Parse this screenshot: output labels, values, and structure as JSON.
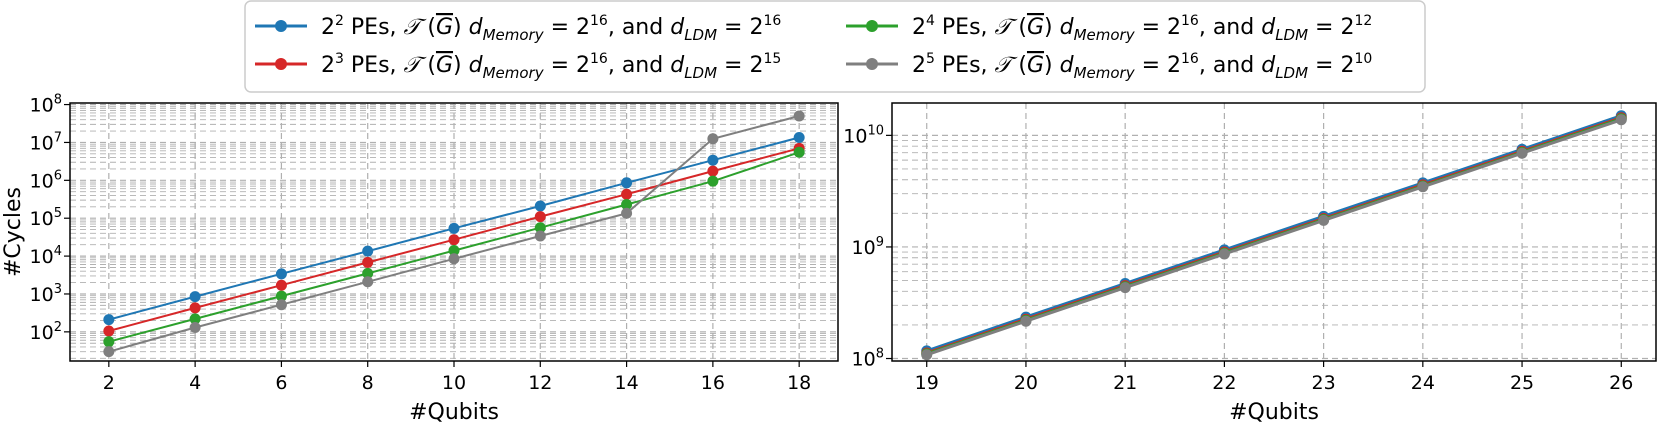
{
  "legend": {
    "entries": [
      {
        "pe": "2",
        "pe_exp": "2",
        "mem_exp": "16",
        "ldm_exp": "16",
        "color": "#1f77b4"
      },
      {
        "pe": "2",
        "pe_exp": "3",
        "mem_exp": "16",
        "ldm_exp": "15",
        "color": "#d62728"
      },
      {
        "pe": "2",
        "pe_exp": "4",
        "mem_exp": "16",
        "ldm_exp": "12",
        "color": "#2ca02c"
      },
      {
        "pe": "2",
        "pe_exp": "5",
        "mem_exp": "16",
        "ldm_exp": "10",
        "color": "#7f7f7f"
      }
    ],
    "text_pes": " PEs, ",
    "text_T": "𝒯",
    "text_G": "G",
    "text_dmem": "d",
    "text_mem_sub": "Memory",
    "text_eq": " = 2",
    "text_and": ", and ",
    "text_dldm": "d",
    "text_ldm_sub": "LDM",
    "text_two": "2"
  },
  "chart_data": [
    {
      "type": "line",
      "xlabel": "#Qubits",
      "ylabel": "#Cycles",
      "yscale": "log",
      "grid": "major and minor, dashed",
      "xlim": [
        1.1,
        18.9
      ],
      "ylim": [
        17,
        110000000
      ],
      "x_ticks": [
        2,
        4,
        6,
        8,
        10,
        12,
        14,
        16,
        18
      ],
      "y_ticks": [
        {
          "base": "10",
          "exp": "2",
          "value": 100
        },
        {
          "base": "10",
          "exp": "3",
          "value": 1000
        },
        {
          "base": "10",
          "exp": "4",
          "value": 10000
        },
        {
          "base": "10",
          "exp": "5",
          "value": 100000
        },
        {
          "base": "10",
          "exp": "6",
          "value": 1000000
        },
        {
          "base": "10",
          "exp": "7",
          "value": 10000000
        },
        {
          "base": "10",
          "exp": "8",
          "value": 100000000
        }
      ],
      "x": [
        2,
        4,
        6,
        8,
        10,
        12,
        14,
        16,
        18
      ],
      "series": [
        {
          "values": [
            210,
            850,
            3400,
            13500,
            54000,
            210000,
            860000,
            3400000,
            13500000
          ],
          "color": "#1f77b4"
        },
        {
          "values": [
            105,
            430,
            1700,
            6800,
            27000,
            110000,
            430000,
            1750000,
            7000000
          ],
          "color": "#d62728"
        },
        {
          "values": [
            55,
            220,
            880,
            3500,
            14000,
            56000,
            230000,
            950000,
            5500000
          ],
          "color": "#2ca02c"
        },
        {
          "values": [
            30,
            130,
            520,
            2100,
            8500,
            34000,
            135000,
            12500000,
            50000000
          ],
          "color": "#7f7f7f"
        }
      ]
    },
    {
      "type": "line",
      "xlabel": "#Qubits",
      "ylabel": "",
      "yscale": "log",
      "grid": "major and minor, dashed",
      "xlim": [
        18.65,
        26.35
      ],
      "ylim": [
        95000000,
        19500000000
      ],
      "x_ticks": [
        19,
        20,
        21,
        22,
        23,
        24,
        25,
        26
      ],
      "y_ticks": [
        {
          "base": "10",
          "exp": "8",
          "value": 100000000
        },
        {
          "base": "10",
          "exp": "9",
          "value": 1000000000
        },
        {
          "base": "10",
          "exp": "10",
          "value": 10000000000
        }
      ],
      "x": [
        19,
        20,
        21,
        22,
        23,
        24,
        25,
        26
      ],
      "series": [
        {
          "values": [
            117000000,
            235000000,
            470000000,
            940000000,
            1880000000,
            3750000000,
            7500000000,
            15000000000
          ],
          "color": "#1f77b4"
        },
        {
          "values": [
            112000000,
            225000000,
            450000000,
            900000000,
            1800000000,
            3600000000,
            7200000000,
            14400000000
          ],
          "color": "#d62728"
        },
        {
          "values": [
            110000000,
            220000000,
            440000000,
            880000000,
            1760000000,
            3520000000,
            7040000000,
            14100000000
          ],
          "color": "#2ca02c"
        },
        {
          "values": [
            108000000,
            216000000,
            432000000,
            864000000,
            1730000000,
            3460000000,
            6920000000,
            13800000000
          ],
          "color": "#7f7f7f"
        }
      ]
    }
  ]
}
